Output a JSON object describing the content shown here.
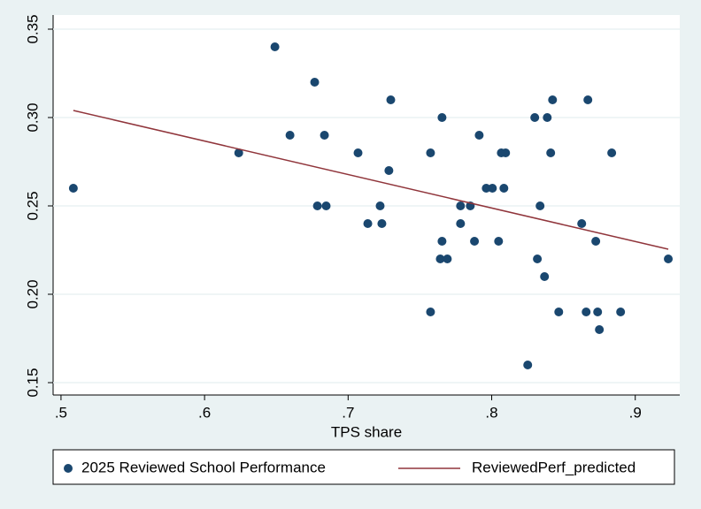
{
  "chart_data": {
    "type": "scatter",
    "xlabel": "TPS share",
    "xlim": [
      0.4945,
      0.931
    ],
    "ylim": [
      0.143,
      0.358
    ],
    "xticks": [
      {
        "value": 0.5,
        "label": ".5"
      },
      {
        "value": 0.6,
        "label": ".6"
      },
      {
        "value": 0.7,
        "label": ".7"
      },
      {
        "value": 0.8,
        "label": ".8"
      },
      {
        "value": 0.9,
        "label": ".9"
      }
    ],
    "yticks": [
      0.15,
      {
        "value": 0.2,
        "label": "0.20"
      },
      0.25,
      {
        "value": 0.3,
        "label": "0.30"
      },
      0.35
    ],
    "grid": true,
    "series": [
      {
        "name": "2025 Reviewed School Performance",
        "color": "#1a476f",
        "x": [
          0.5086,
          0.6238,
          0.649,
          0.6595,
          0.6767,
          0.6786,
          0.6835,
          0.6847,
          0.7069,
          0.7137,
          0.7223,
          0.7235,
          0.7284,
          0.7297,
          0.7574,
          0.7574,
          0.7654,
          0.7654,
          0.7642,
          0.7691,
          0.7783,
          0.7783,
          0.7851,
          0.788,
          0.7913,
          0.7962,
          0.8005,
          0.8048,
          0.8067,
          0.8097,
          0.8085,
          0.8251,
          0.83,
          0.8318,
          0.8337,
          0.8368,
          0.8387,
          0.8411,
          0.8424,
          0.8467,
          0.8627,
          0.8658,
          0.867,
          0.8725,
          0.8738,
          0.875,
          0.8836,
          0.8898,
          0.923
        ],
        "values": [
          0.26,
          0.28,
          0.34,
          0.29,
          0.32,
          0.25,
          0.29,
          0.25,
          0.28,
          0.24,
          0.25,
          0.24,
          0.27,
          0.31,
          0.19,
          0.28,
          0.3,
          0.23,
          0.22,
          0.22,
          0.24,
          0.25,
          0.25,
          0.23,
          0.29,
          0.26,
          0.26,
          0.23,
          0.28,
          0.28,
          0.26,
          0.16,
          0.3,
          0.22,
          0.25,
          0.21,
          0.3,
          0.28,
          0.31,
          0.19,
          0.24,
          0.19,
          0.31,
          0.23,
          0.19,
          0.18,
          0.28,
          0.19,
          0.22
        ]
      },
      {
        "name": "ReviewedPerf_predicted",
        "color": "#90353b",
        "type": "line",
        "x": [
          0.5086,
          0.923
        ],
        "values": [
          0.304,
          0.2255
        ]
      }
    ]
  }
}
